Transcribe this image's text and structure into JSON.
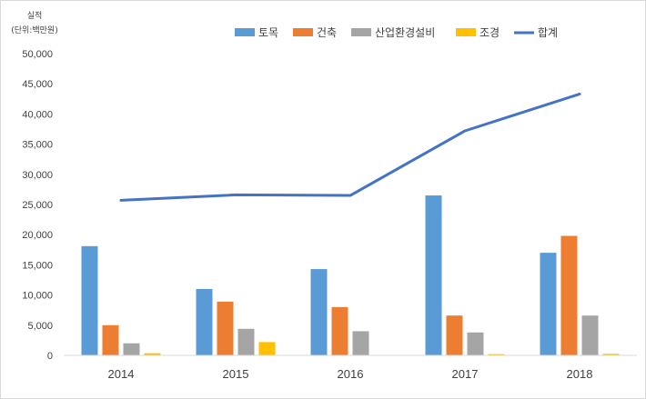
{
  "chart_data": {
    "type": "bar",
    "ylabel_line1": "실적",
    "ylabel_line2": "(단위:백만원)",
    "xlabel": "",
    "categories": [
      "2014",
      "2015",
      "2016",
      "2017",
      "2018"
    ],
    "ylim": [
      0,
      50000
    ],
    "yticks": [
      "0",
      "5,000",
      "10,000",
      "15,000",
      "20,000",
      "25,000",
      "30,000",
      "35,000",
      "40,000",
      "45,000",
      "50,000"
    ],
    "grid": false,
    "legend_position": "top",
    "series": [
      {
        "name": "토목",
        "kind": "bar",
        "color": "#5b9bd5",
        "values": [
          18100,
          11000,
          14300,
          26500,
          17000
        ]
      },
      {
        "name": "건축",
        "kind": "bar",
        "color": "#ed7d31",
        "values": [
          5000,
          8900,
          8000,
          6600,
          19800
        ]
      },
      {
        "name": "산업환경설비",
        "kind": "bar",
        "color": "#a5a5a5",
        "values": [
          2000,
          4400,
          4000,
          3800,
          6600
        ]
      },
      {
        "name": "조경",
        "kind": "bar",
        "color": "#ffc000",
        "values": [
          350,
          2200,
          0,
          200,
          250
        ]
      },
      {
        "name": "합계",
        "kind": "line",
        "color": "#4472c4",
        "values": [
          25700,
          26600,
          26500,
          37200,
          43300
        ]
      }
    ]
  }
}
